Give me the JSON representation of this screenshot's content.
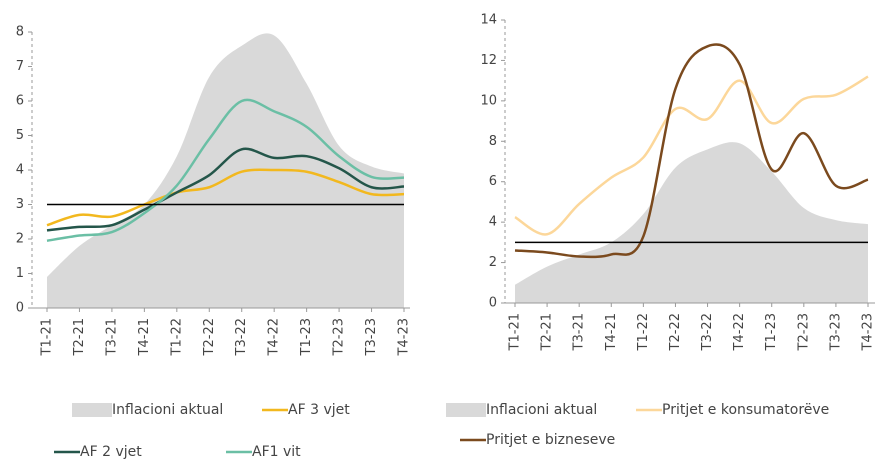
{
  "chart_data": [
    {
      "type": "line",
      "categories": [
        "T1-21",
        "T2-21",
        "T3-21",
        "T4-21",
        "T1-22",
        "T2-22",
        "T3-22",
        "T4-22",
        "T1-23",
        "T2-23",
        "T3-23",
        "T4-23"
      ],
      "ylim": [
        0,
        8
      ],
      "yticks": [
        0,
        1,
        2,
        3,
        4,
        5,
        6,
        7,
        8
      ],
      "hline": 3,
      "hline_color": "#000000",
      "series": [
        {
          "name": "Inflacioni aktual",
          "type": "area",
          "color": "#d9d9d9",
          "values": [
            0.9,
            1.8,
            2.4,
            3.0,
            4.4,
            6.7,
            7.6,
            7.9,
            6.5,
            4.7,
            4.1,
            3.9
          ]
        },
        {
          "name": "AF 3 vjet",
          "type": "line",
          "color": "#f2b81e",
          "values": [
            2.4,
            2.7,
            2.65,
            3.0,
            3.35,
            3.5,
            3.95,
            4.0,
            3.95,
            3.65,
            3.3,
            3.3
          ]
        },
        {
          "name": "AF 2 vjet",
          "type": "line",
          "color": "#24564a",
          "values": [
            2.25,
            2.35,
            2.4,
            2.85,
            3.35,
            3.85,
            4.6,
            4.35,
            4.4,
            4.05,
            3.5,
            3.52
          ]
        },
        {
          "name": "AF1 vit",
          "type": "line",
          "color": "#6bbfa5",
          "values": [
            1.95,
            2.1,
            2.2,
            2.75,
            3.55,
            4.9,
            6.0,
            5.7,
            5.25,
            4.4,
            3.8,
            3.78
          ]
        }
      ]
    },
    {
      "type": "line",
      "categories": [
        "T1-21",
        "T2-21",
        "T3-21",
        "T4-21",
        "T1-22",
        "T2-22",
        "T3-22",
        "T4-22",
        "T1-23",
        "T2-23",
        "T3-23",
        "T4-23"
      ],
      "ylim": [
        0,
        14
      ],
      "yticks": [
        0,
        2,
        4,
        6,
        8,
        10,
        12,
        14
      ],
      "hline": 3,
      "hline_color": "#000000",
      "series": [
        {
          "name": "Inflacioni aktual",
          "type": "area",
          "color": "#d9d9d9",
          "values": [
            0.9,
            1.8,
            2.4,
            3.0,
            4.4,
            6.7,
            7.6,
            7.9,
            6.5,
            4.7,
            4.1,
            3.9
          ]
        },
        {
          "name": "Pritjet e konsumatorëve",
          "type": "line",
          "color": "#fcd79a",
          "values": [
            4.25,
            3.4,
            4.9,
            6.2,
            7.2,
            9.6,
            9.1,
            11.0,
            8.9,
            10.1,
            10.3,
            11.2
          ]
        },
        {
          "name": "Pritjet e bizneseve",
          "type": "line",
          "color": "#7b4a1e",
          "values": [
            2.6,
            2.5,
            2.3,
            2.4,
            3.3,
            10.6,
            12.7,
            11.8,
            6.6,
            8.4,
            5.8,
            6.1
          ]
        }
      ]
    }
  ]
}
